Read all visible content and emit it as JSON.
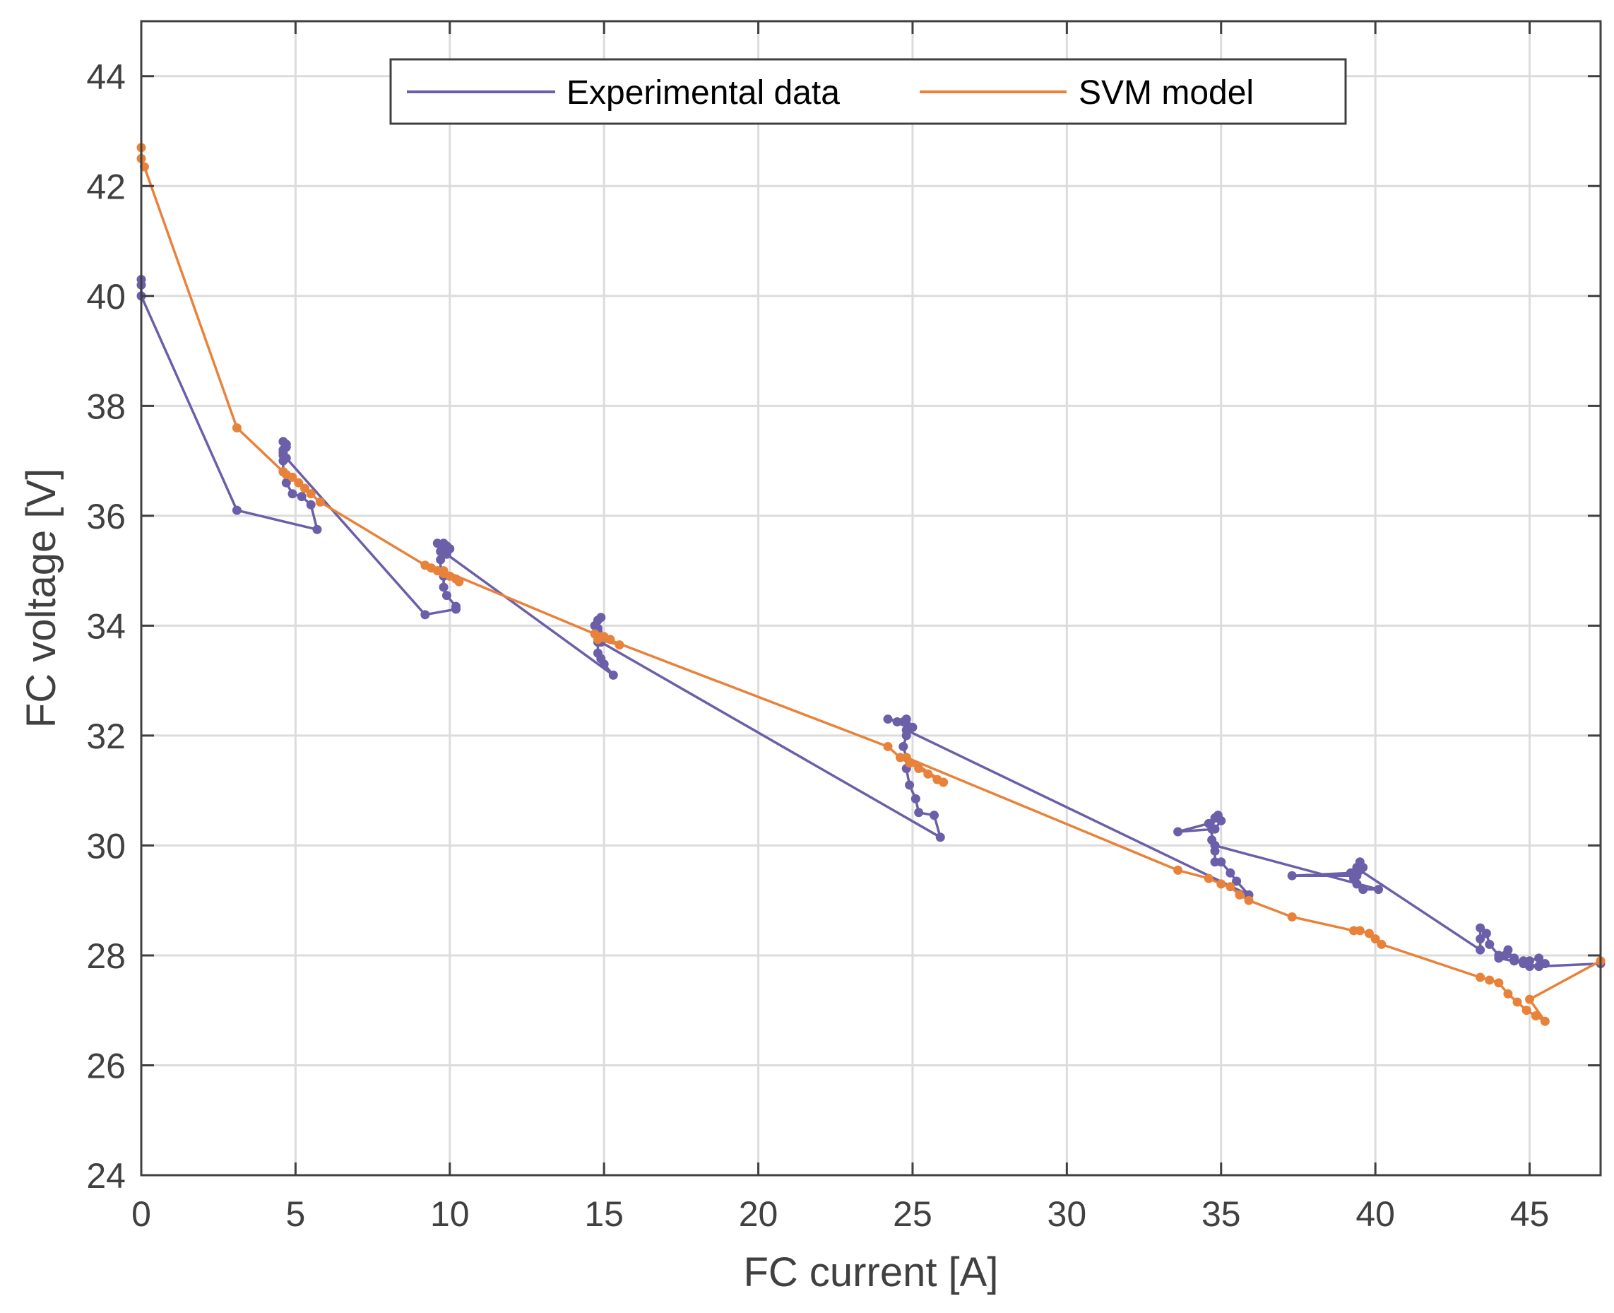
{
  "chart_data": {
    "type": "line",
    "title": "",
    "xlabel": "FC current [A]",
    "ylabel": "FC voltage [V]",
    "xlim": [
      0,
      47.3
    ],
    "ylim": [
      24,
      45
    ],
    "xticks": [
      0,
      5,
      10,
      15,
      20,
      25,
      30,
      35,
      40,
      45
    ],
    "yticks": [
      24,
      26,
      28,
      30,
      32,
      34,
      36,
      38,
      40,
      42,
      44
    ],
    "grid": true,
    "legend": {
      "position": "top-center",
      "entries": [
        "Experimental data",
        "SVM model"
      ]
    },
    "colors": {
      "experimental": "#6a5fa8",
      "svm": "#e8823a",
      "grid": "#dcdcdc",
      "axis": "#404040"
    },
    "series": [
      {
        "name": "Experimental data",
        "marker": "dot",
        "points": [
          [
            0.0,
            40.3
          ],
          [
            0.0,
            40.2
          ],
          [
            0.0,
            40.0
          ],
          [
            3.1,
            36.1
          ],
          [
            5.7,
            35.75
          ],
          [
            5.5,
            36.2
          ],
          [
            5.2,
            36.35
          ],
          [
            4.9,
            36.4
          ],
          [
            4.7,
            36.6
          ],
          [
            4.6,
            36.8
          ],
          [
            4.6,
            37.0
          ],
          [
            4.6,
            37.1
          ],
          [
            4.6,
            37.2
          ],
          [
            4.7,
            37.3
          ],
          [
            4.6,
            37.35
          ],
          [
            4.7,
            37.25
          ],
          [
            4.6,
            37.15
          ],
          [
            4.7,
            37.05
          ],
          [
            9.2,
            34.2
          ],
          [
            10.2,
            34.3
          ],
          [
            10.2,
            34.35
          ],
          [
            9.9,
            34.55
          ],
          [
            9.8,
            34.7
          ],
          [
            9.8,
            34.9
          ],
          [
            9.7,
            35.0
          ],
          [
            9.7,
            35.2
          ],
          [
            9.7,
            35.35
          ],
          [
            9.9,
            35.45
          ],
          [
            10.0,
            35.4
          ],
          [
            9.8,
            35.5
          ],
          [
            9.6,
            35.5
          ],
          [
            9.8,
            35.3
          ],
          [
            9.9,
            35.3
          ],
          [
            15.3,
            33.1
          ],
          [
            15.0,
            33.3
          ],
          [
            14.9,
            33.4
          ],
          [
            14.8,
            33.5
          ],
          [
            14.8,
            33.7
          ],
          [
            14.8,
            33.9
          ],
          [
            14.7,
            34.0
          ],
          [
            14.8,
            34.1
          ],
          [
            14.9,
            34.15
          ],
          [
            14.8,
            33.95
          ],
          [
            14.9,
            33.8
          ],
          [
            14.9,
            33.7
          ],
          [
            25.9,
            30.15
          ],
          [
            25.7,
            30.55
          ],
          [
            25.2,
            30.6
          ],
          [
            25.1,
            30.85
          ],
          [
            24.9,
            31.1
          ],
          [
            24.8,
            31.4
          ],
          [
            24.8,
            31.6
          ],
          [
            24.7,
            31.8
          ],
          [
            24.8,
            32.0
          ],
          [
            24.9,
            32.15
          ],
          [
            24.7,
            32.25
          ],
          [
            24.2,
            32.3
          ],
          [
            24.5,
            32.25
          ],
          [
            24.8,
            32.3
          ],
          [
            25.0,
            32.15
          ],
          [
            24.8,
            32.1
          ],
          [
            35.9,
            29.1
          ],
          [
            35.5,
            29.35
          ],
          [
            35.3,
            29.5
          ],
          [
            35.0,
            29.7
          ],
          [
            34.8,
            29.7
          ],
          [
            34.8,
            29.9
          ],
          [
            34.7,
            30.1
          ],
          [
            34.7,
            30.3
          ],
          [
            34.8,
            30.5
          ],
          [
            34.9,
            30.55
          ],
          [
            35.0,
            30.45
          ],
          [
            34.8,
            30.3
          ],
          [
            33.6,
            30.25
          ],
          [
            34.6,
            30.4
          ],
          [
            34.8,
            30.0
          ],
          [
            40.1,
            29.2
          ],
          [
            39.6,
            29.2
          ],
          [
            39.4,
            29.3
          ],
          [
            39.3,
            29.4
          ],
          [
            39.3,
            29.5
          ],
          [
            39.4,
            29.6
          ],
          [
            39.5,
            29.7
          ],
          [
            39.6,
            29.6
          ],
          [
            39.4,
            29.45
          ],
          [
            37.3,
            29.45
          ],
          [
            39.2,
            29.5
          ],
          [
            39.5,
            29.55
          ],
          [
            43.4,
            28.1
          ],
          [
            43.4,
            28.3
          ],
          [
            43.4,
            28.5
          ],
          [
            43.6,
            28.4
          ],
          [
            43.7,
            28.2
          ],
          [
            44.0,
            28.0
          ],
          [
            44.3,
            28.1
          ],
          [
            44.5,
            27.9
          ],
          [
            44.8,
            27.9
          ],
          [
            45.0,
            27.8
          ],
          [
            45.3,
            27.8
          ],
          [
            45.5,
            27.85
          ],
          [
            45.3,
            27.95
          ],
          [
            45.0,
            27.9
          ],
          [
            44.8,
            27.85
          ],
          [
            44.5,
            27.95
          ],
          [
            44.2,
            28.0
          ],
          [
            44.0,
            27.95
          ],
          [
            45.3,
            27.8
          ],
          [
            47.3,
            27.85
          ]
        ]
      },
      {
        "name": "SVM model",
        "marker": "dot",
        "points": [
          [
            0.0,
            42.7
          ],
          [
            0.0,
            42.5
          ],
          [
            0.1,
            42.35
          ],
          [
            3.1,
            37.6
          ],
          [
            4.6,
            36.8
          ],
          [
            4.7,
            36.75
          ],
          [
            4.9,
            36.7
          ],
          [
            5.1,
            36.6
          ],
          [
            5.3,
            36.5
          ],
          [
            5.5,
            36.4
          ],
          [
            5.8,
            36.25
          ],
          [
            9.2,
            35.1
          ],
          [
            9.4,
            35.05
          ],
          [
            9.6,
            35.0
          ],
          [
            9.8,
            34.95
          ],
          [
            10.0,
            34.9
          ],
          [
            10.2,
            34.85
          ],
          [
            10.3,
            34.8
          ],
          [
            9.8,
            35.0
          ],
          [
            14.7,
            33.85
          ],
          [
            15.0,
            33.8
          ],
          [
            15.2,
            33.75
          ],
          [
            15.5,
            33.65
          ],
          [
            14.8,
            33.75
          ],
          [
            14.9,
            33.8
          ],
          [
            24.2,
            31.8
          ],
          [
            24.6,
            31.6
          ],
          [
            24.9,
            31.5
          ],
          [
            25.2,
            31.4
          ],
          [
            25.5,
            31.3
          ],
          [
            25.8,
            31.2
          ],
          [
            26.0,
            31.15
          ],
          [
            24.8,
            31.6
          ],
          [
            33.6,
            29.55
          ],
          [
            34.6,
            29.4
          ],
          [
            35.0,
            29.3
          ],
          [
            35.3,
            29.25
          ],
          [
            35.6,
            29.1
          ],
          [
            35.9,
            29.0
          ],
          [
            37.3,
            28.7
          ],
          [
            39.3,
            28.45
          ],
          [
            39.5,
            28.45
          ],
          [
            39.8,
            28.4
          ],
          [
            40.0,
            28.3
          ],
          [
            40.2,
            28.2
          ],
          [
            43.4,
            27.6
          ],
          [
            43.7,
            27.55
          ],
          [
            44.0,
            27.5
          ],
          [
            44.3,
            27.3
          ],
          [
            44.6,
            27.15
          ],
          [
            44.9,
            27.0
          ],
          [
            45.2,
            26.9
          ],
          [
            45.5,
            26.8
          ],
          [
            45.0,
            27.2
          ],
          [
            47.3,
            27.9
          ]
        ]
      }
    ]
  }
}
